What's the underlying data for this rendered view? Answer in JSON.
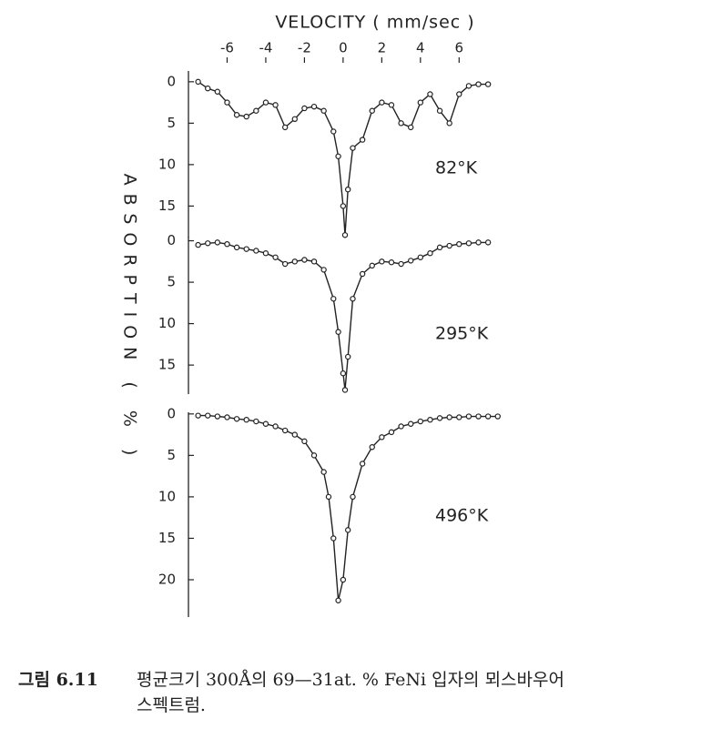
{
  "chart_data": [
    {
      "type": "line",
      "xlabel": "VELOCITY ( mm/sec )",
      "ylabel": "ABSORPTION ( % )",
      "label": "82°K",
      "xlim": [
        -8,
        9
      ],
      "xticks": [
        -6,
        -4,
        -2,
        0,
        2,
        4,
        6
      ],
      "ylim": [
        -1.3,
        18.8
      ],
      "yticks": [
        0,
        5,
        10,
        15
      ],
      "x": [
        -7.5,
        -7,
        -6.5,
        -6,
        -5.5,
        -5,
        -4.5,
        -4,
        -3.5,
        -3,
        -2.5,
        -2,
        -1.5,
        -1,
        -0.5,
        -0.25,
        0,
        0.1,
        0.25,
        0.5,
        1,
        1.5,
        2,
        2.5,
        3,
        3.5,
        4,
        4.5,
        5,
        5.5,
        6,
        6.5,
        7,
        7.5
      ],
      "values": [
        0,
        0.8,
        1.2,
        2.5,
        4.0,
        4.2,
        3.5,
        2.5,
        2.8,
        5.5,
        4.5,
        3.2,
        3.0,
        3.5,
        6,
        9,
        15,
        18.5,
        13,
        8,
        7,
        3.5,
        2.5,
        2.8,
        5,
        5.5,
        2.5,
        1.5,
        3.5,
        5,
        1.5,
        0.5,
        0.3,
        0.3
      ]
    },
    {
      "type": "line",
      "label": "295°K",
      "xlim": [
        -8,
        9
      ],
      "ylim": [
        -0.5,
        18.5
      ],
      "yticks": [
        0,
        5,
        10,
        15
      ],
      "x": [
        -7.5,
        -7,
        -6.5,
        -6,
        -5.5,
        -5,
        -4.5,
        -4,
        -3.5,
        -3,
        -2.5,
        -2,
        -1.5,
        -1,
        -0.5,
        -0.25,
        0,
        0.1,
        0.25,
        0.5,
        1,
        1.5,
        2,
        2.5,
        3,
        3.5,
        4,
        4.5,
        5,
        5.5,
        6,
        6.5,
        7,
        7.5
      ],
      "values": [
        0.5,
        0.3,
        0.2,
        0.4,
        0.8,
        1.0,
        1.2,
        1.5,
        2.0,
        2.8,
        2.5,
        2.3,
        2.5,
        3.5,
        7,
        11,
        16,
        18,
        14,
        7,
        4,
        3,
        2.5,
        2.6,
        2.8,
        2.4,
        2.0,
        1.5,
        0.8,
        0.6,
        0.4,
        0.3,
        0.2,
        0.2
      ]
    },
    {
      "type": "line",
      "label": "496°K",
      "xlim": [
        -8,
        9
      ],
      "ylim": [
        -0.2,
        24.5
      ],
      "yticks": [
        0,
        5,
        10,
        15,
        20
      ],
      "x": [
        -7.5,
        -7,
        -6.5,
        -6,
        -5.5,
        -5,
        -4.5,
        -4,
        -3.5,
        -3,
        -2.5,
        -2,
        -1.5,
        -1,
        -0.75,
        -0.5,
        -0.25,
        0,
        0.25,
        0.5,
        1,
        1.5,
        2,
        2.5,
        3,
        3.5,
        4,
        4.5,
        5,
        5.5,
        6,
        6.5,
        7,
        7.5,
        8
      ],
      "values": [
        0.2,
        0.2,
        0.3,
        0.4,
        0.6,
        0.7,
        0.9,
        1.2,
        1.5,
        2.0,
        2.5,
        3.3,
        5,
        7,
        10,
        15,
        22.5,
        20,
        14,
        10,
        6,
        4,
        2.8,
        2.2,
        1.5,
        1.2,
        0.9,
        0.7,
        0.5,
        0.4,
        0.4,
        0.3,
        0.3,
        0.3,
        0.3
      ]
    }
  ],
  "caption": {
    "number": "그림 6.11",
    "lines": [
      "평균크기 300Å의 69—31at. % FeNi 입자의 뫼스바우어",
      "스펙트럼."
    ]
  }
}
